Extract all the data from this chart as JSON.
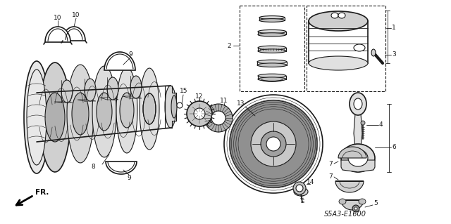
{
  "bg_color": "#ffffff",
  "line_color": "#1a1a1a",
  "fig_width": 6.4,
  "fig_height": 3.19,
  "dpi": 100,
  "diagram_code": "S5A3-E1600",
  "gray_fill": "#d0d0d0",
  "mid_gray": "#a0a0a0",
  "dark_gray": "#555555"
}
